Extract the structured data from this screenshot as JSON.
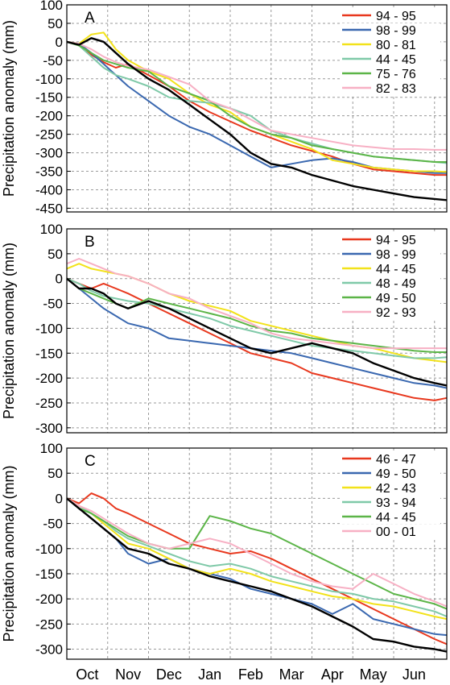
{
  "chart_data": [
    {
      "type": "line",
      "panel_label": "A",
      "ylabel": "Precipitation anomaly (mm)",
      "ylim": [
        -460,
        100
      ],
      "yticks": [
        100,
        50,
        0,
        -50,
        -100,
        -150,
        -200,
        -250,
        -300,
        -350,
        -400,
        -450
      ],
      "x_categories": [
        "Oct",
        "Nov",
        "Dec",
        "Jan",
        "Feb",
        "Mar",
        "Apr",
        "May",
        "Jun"
      ],
      "xlim": [
        0,
        9.3
      ],
      "grid": true,
      "legend_position": "top-right",
      "x": [
        0,
        0.3,
        0.6,
        0.9,
        1.2,
        1.5,
        2,
        2.5,
        3,
        3.5,
        4,
        4.5,
        5,
        5.5,
        6,
        6.5,
        7,
        7.5,
        8,
        8.5,
        9,
        9.3
      ],
      "series": [
        {
          "name": "94 - 95",
          "color": "#e8381e",
          "values": [
            0,
            -8,
            -35,
            -55,
            -70,
            -60,
            -90,
            -120,
            -160,
            -190,
            -215,
            -240,
            -260,
            -280,
            -295,
            -310,
            -330,
            -345,
            -350,
            -355,
            -360,
            -360
          ]
        },
        {
          "name": "98 - 99",
          "color": "#3a68b0",
          "values": [
            0,
            -5,
            -30,
            -60,
            -90,
            -120,
            -160,
            -200,
            -230,
            -250,
            -280,
            -310,
            -340,
            -330,
            -320,
            -315,
            -325,
            -340,
            -345,
            -350,
            -355,
            -355
          ]
        },
        {
          "name": "80 - 81",
          "color": "#f2e21a",
          "values": [
            0,
            -5,
            20,
            25,
            -20,
            -50,
            -80,
            -100,
            -140,
            -170,
            -190,
            -230,
            -250,
            -270,
            -290,
            -320,
            -330,
            -340,
            -345,
            -350,
            -350,
            -352
          ]
        },
        {
          "name": "44 - 45",
          "color": "#7fc9a8",
          "values": [
            0,
            -10,
            -40,
            -70,
            -90,
            -100,
            -120,
            -150,
            -160,
            -165,
            -180,
            -200,
            -240,
            -260,
            -275,
            -290,
            -300,
            -310,
            -315,
            -320,
            -325,
            -328
          ]
        },
        {
          "name": "75 - 76",
          "color": "#5cb548",
          "values": [
            0,
            -10,
            -30,
            -50,
            -60,
            -70,
            -80,
            -120,
            -140,
            -160,
            -200,
            -230,
            -250,
            -260,
            -280,
            -290,
            -300,
            -310,
            -315,
            -320,
            -325,
            -325
          ]
        },
        {
          "name": "82 - 83",
          "color": "#f7b0c4",
          "values": [
            0,
            -5,
            -20,
            -40,
            -55,
            -65,
            -75,
            -95,
            -115,
            -160,
            -180,
            -210,
            -240,
            -250,
            -260,
            -270,
            -280,
            -285,
            -290,
            -290,
            -292,
            -292
          ]
        },
        {
          "name": "",
          "color": "#000000",
          "values": [
            0,
            -8,
            10,
            0,
            -30,
            -60,
            -100,
            -130,
            -170,
            -210,
            -250,
            -300,
            -330,
            -340,
            -360,
            -375,
            -390,
            -400,
            -410,
            -420,
            -425,
            -428
          ]
        }
      ]
    },
    {
      "type": "line",
      "panel_label": "B",
      "ylabel": "Precipitation anomaly (mm)",
      "ylim": [
        -310,
        100
      ],
      "yticks": [
        100,
        50,
        0,
        -50,
        -100,
        -150,
        -200,
        -250,
        -300
      ],
      "x_categories": [
        "Oct",
        "Nov",
        "Dec",
        "Jan",
        "Feb",
        "Mar",
        "Apr",
        "May",
        "Jun"
      ],
      "xlim": [
        0,
        9.3
      ],
      "grid": true,
      "legend_position": "top-right",
      "x": [
        0,
        0.3,
        0.6,
        0.9,
        1.2,
        1.5,
        2,
        2.5,
        3,
        3.5,
        4,
        4.5,
        5,
        5.5,
        6,
        6.5,
        7,
        7.5,
        8,
        8.5,
        9,
        9.3
      ],
      "series": [
        {
          "name": "94 - 95",
          "color": "#e8381e",
          "values": [
            0,
            -10,
            -20,
            -10,
            -20,
            -30,
            -50,
            -70,
            -90,
            -110,
            -130,
            -150,
            -160,
            -170,
            -190,
            -200,
            -210,
            -220,
            -230,
            -240,
            -245,
            -240
          ]
        },
        {
          "name": "98 - 99",
          "color": "#3a68b0",
          "values": [
            0,
            -20,
            -40,
            -60,
            -75,
            -90,
            -100,
            -120,
            -125,
            -130,
            -135,
            -140,
            -145,
            -150,
            -160,
            -170,
            -180,
            -190,
            -200,
            -210,
            -215,
            -220
          ]
        },
        {
          "name": "44 - 45",
          "color": "#f2e21a",
          "values": [
            20,
            30,
            20,
            15,
            10,
            5,
            -10,
            -30,
            -45,
            -55,
            -65,
            -85,
            -95,
            -105,
            -115,
            -125,
            -135,
            -140,
            -150,
            -160,
            -165,
            -168
          ]
        },
        {
          "name": "48 - 49",
          "color": "#7fc9a8",
          "values": [
            0,
            -10,
            -25,
            -35,
            -40,
            -45,
            -50,
            -60,
            -70,
            -80,
            -95,
            -105,
            -115,
            -125,
            -135,
            -140,
            -145,
            -150,
            -155,
            -160,
            -160,
            -158
          ]
        },
        {
          "name": "49 - 50",
          "color": "#5cb548",
          "values": [
            0,
            -20,
            -30,
            -40,
            -50,
            -60,
            -40,
            -50,
            -60,
            -70,
            -80,
            -95,
            -105,
            -110,
            -120,
            -125,
            -130,
            -135,
            -140,
            -145,
            -148,
            -148
          ]
        },
        {
          "name": "92 - 93",
          "color": "#f7b0c4",
          "values": [
            30,
            40,
            30,
            20,
            10,
            5,
            -10,
            -30,
            -40,
            -60,
            -75,
            -90,
            -110,
            -120,
            -125,
            -130,
            -135,
            -140,
            -140,
            -140,
            -140,
            -140
          ]
        },
        {
          "name": "",
          "color": "#000000",
          "values": [
            0,
            -20,
            -20,
            -30,
            -50,
            -60,
            -45,
            -60,
            -80,
            -100,
            -120,
            -140,
            -150,
            -140,
            -130,
            -140,
            -150,
            -170,
            -185,
            -200,
            -210,
            -215
          ]
        }
      ]
    },
    {
      "type": "line",
      "panel_label": "C",
      "ylabel": "Precipitation anomaly (mm)",
      "ylim": [
        -320,
        100
      ],
      "yticks": [
        100,
        50,
        0,
        -50,
        -100,
        -150,
        -200,
        -250,
        -300
      ],
      "x_categories": [
        "Oct",
        "Nov",
        "Dec",
        "Jan",
        "Feb",
        "Mar",
        "Apr",
        "May",
        "Jun"
      ],
      "xlim": [
        0,
        9.3
      ],
      "grid": true,
      "legend_position": "top-right",
      "x": [
        0,
        0.3,
        0.6,
        0.9,
        1.2,
        1.5,
        2,
        2.5,
        3,
        3.5,
        4,
        4.5,
        5,
        5.5,
        6,
        6.5,
        7,
        7.5,
        8,
        8.5,
        9,
        9.3
      ],
      "series": [
        {
          "name": "46 - 47",
          "color": "#e8381e",
          "values": [
            0,
            -10,
            10,
            0,
            -20,
            -30,
            -50,
            -70,
            -90,
            -100,
            -110,
            -105,
            -120,
            -140,
            -160,
            -180,
            -200,
            -220,
            -240,
            -260,
            -280,
            -290
          ]
        },
        {
          "name": "49 - 50",
          "color": "#3a68b0",
          "values": [
            0,
            -20,
            -40,
            -60,
            -80,
            -110,
            -130,
            -120,
            -140,
            -150,
            -160,
            -180,
            -190,
            -200,
            -210,
            -230,
            -210,
            -240,
            -250,
            -260,
            -270,
            -272
          ]
        },
        {
          "name": "42 - 43",
          "color": "#f2e21a",
          "values": [
            0,
            -15,
            -30,
            -50,
            -70,
            -90,
            -100,
            -120,
            -140,
            -150,
            -140,
            -150,
            -165,
            -175,
            -185,
            -195,
            -200,
            -210,
            -215,
            -225,
            -235,
            -240
          ]
        },
        {
          "name": "93 - 94",
          "color": "#7fc9a8",
          "values": [
            0,
            -15,
            -30,
            -45,
            -65,
            -80,
            -95,
            -110,
            -125,
            -135,
            -130,
            -140,
            -155,
            -165,
            -175,
            -185,
            -190,
            -200,
            -205,
            -215,
            -225,
            -235
          ]
        },
        {
          "name": "44 - 45",
          "color": "#5cb548",
          "values": [
            0,
            -20,
            -30,
            -45,
            -60,
            -75,
            -90,
            -100,
            -100,
            -35,
            -45,
            -60,
            -70,
            -90,
            -110,
            -130,
            -150,
            -170,
            -190,
            -200,
            -210,
            -220
          ]
        },
        {
          "name": "00 - 01",
          "color": "#f7b0c4",
          "values": [
            0,
            -15,
            -25,
            -40,
            -55,
            -70,
            -90,
            -100,
            -90,
            -80,
            -90,
            -110,
            -130,
            -150,
            -165,
            -175,
            -180,
            -150,
            -170,
            -190,
            -205,
            -215
          ]
        },
        {
          "name": "",
          "color": "#000000",
          "values": [
            0,
            -20,
            -40,
            -60,
            -80,
            -100,
            -110,
            -130,
            -140,
            -155,
            -165,
            -175,
            -185,
            -200,
            -215,
            -235,
            -255,
            -280,
            -285,
            -295,
            -300,
            -305
          ]
        }
      ]
    }
  ]
}
